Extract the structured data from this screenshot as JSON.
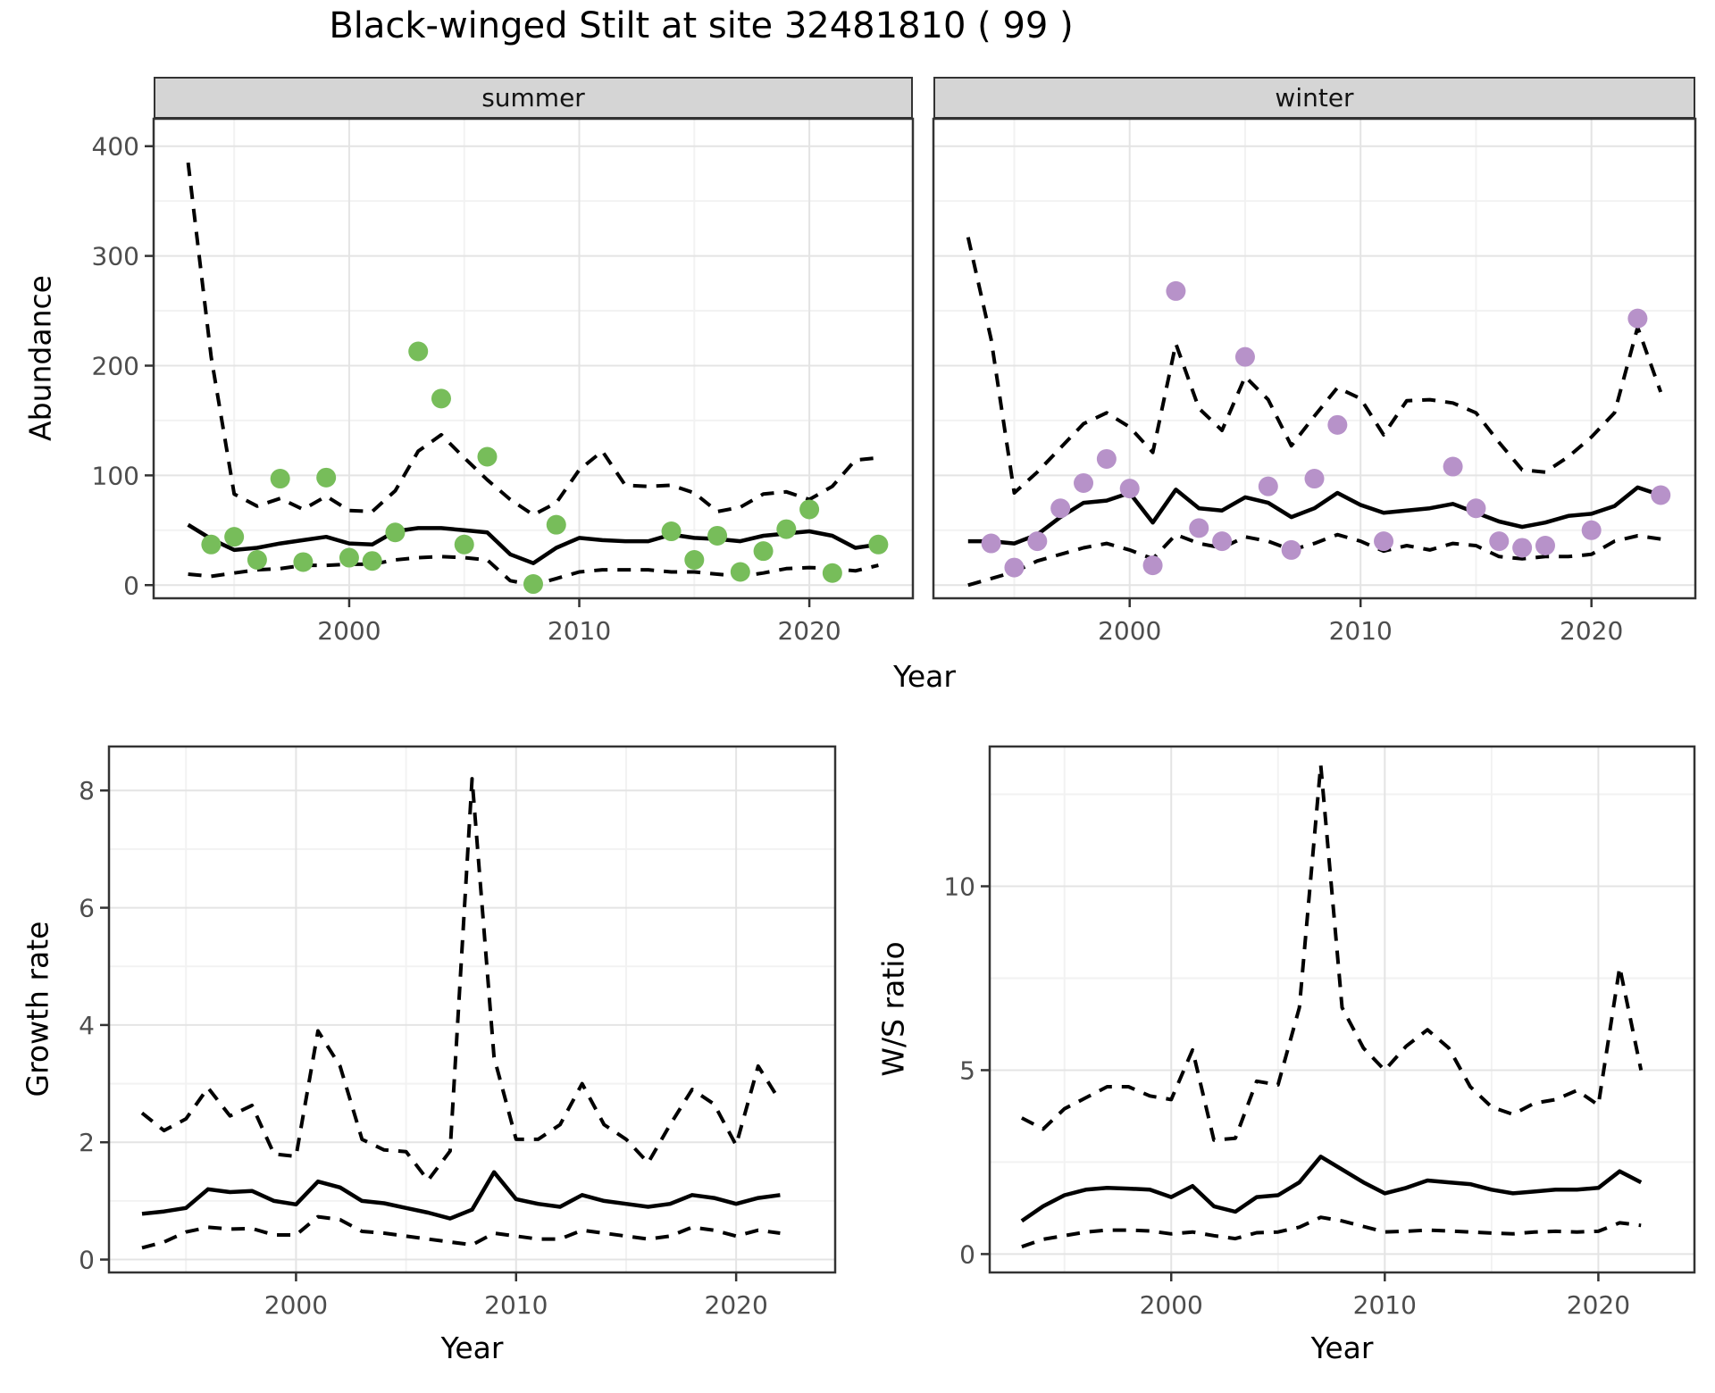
{
  "title": "Black-winged Stilt at site 32481810 ( 99 )",
  "top_row": {
    "ylabel": "Abundance",
    "xlabel": "Year",
    "facets": [
      "summer",
      "winter"
    ]
  },
  "bottom_left": {
    "ylabel": "Growth rate",
    "xlabel": "Year"
  },
  "bottom_right": {
    "ylabel": "W/S ratio",
    "xlabel": "Year"
  },
  "colors": {
    "summer_points": "#77bd5a",
    "winter_points": "#b792c9",
    "line": "#000000",
    "grid_major": "#e4e4e4",
    "grid_minor": "#f2f2f2",
    "strip_bg": "#d5d5d5",
    "panel_border": "#333333",
    "tick_text": "#4d4d4d"
  },
  "chart_data": [
    {
      "id": "abundance_summer",
      "type": "line",
      "facet": "summer",
      "xlabel": "Year",
      "ylabel": "Abundance",
      "xlim": [
        1991.5,
        2024.5
      ],
      "ylim": [
        -12,
        425
      ],
      "x_ticks": [
        2000,
        2010,
        2020
      ],
      "x_minor": [
        1995,
        2005,
        2015
      ],
      "y_ticks": [
        0,
        100,
        200,
        300,
        400
      ],
      "y_minor": [
        50,
        150,
        250,
        350
      ],
      "show_y_tick_labels": true,
      "line_years": [
        1993,
        1994,
        1995,
        1996,
        1997,
        1998,
        1999,
        2000,
        2001,
        2002,
        2003,
        2004,
        2005,
        2006,
        2007,
        2008,
        2009,
        2010,
        2011,
        2012,
        2013,
        2014,
        2015,
        2016,
        2017,
        2018,
        2019,
        2020,
        2021,
        2022,
        2023
      ],
      "series": [
        {
          "name": "upper_95ci",
          "style": "dashed",
          "values": [
            385,
            208,
            83,
            72,
            79,
            69,
            81,
            68,
            67,
            86,
            122,
            137,
            116,
            96,
            78,
            64,
            75,
            105,
            122,
            91,
            90,
            91,
            84,
            67,
            71,
            83,
            85,
            78,
            90,
            114,
            116
          ]
        },
        {
          "name": "mean",
          "style": "solid",
          "values": [
            55,
            42,
            32,
            34,
            38,
            41,
            44,
            38,
            37,
            49,
            52,
            52,
            50,
            48,
            28,
            20,
            34,
            43,
            41,
            40,
            40,
            46,
            43,
            42,
            40,
            45,
            47,
            49,
            45,
            34,
            37
          ]
        },
        {
          "name": "lower_95ci",
          "style": "dashed",
          "values": [
            10,
            8,
            11,
            14,
            15,
            18,
            18,
            19,
            19,
            23,
            25,
            26,
            25,
            23,
            4,
            0,
            6,
            12,
            14,
            14,
            14,
            12,
            12,
            10,
            8,
            11,
            15,
            16,
            15,
            13,
            18
          ]
        }
      ],
      "points": {
        "name": "observed_summer_counts",
        "color_key": "summer_points",
        "data": [
          [
            1994,
            37
          ],
          [
            1995,
            44
          ],
          [
            1996,
            23
          ],
          [
            1997,
            97
          ],
          [
            1998,
            21
          ],
          [
            1999,
            98
          ],
          [
            2000,
            25
          ],
          [
            2001,
            22
          ],
          [
            2002,
            48
          ],
          [
            2003,
            213
          ],
          [
            2004,
            170
          ],
          [
            2005,
            37
          ],
          [
            2006,
            117
          ],
          [
            2008,
            1
          ],
          [
            2009,
            55
          ],
          [
            2014,
            49
          ],
          [
            2015,
            23
          ],
          [
            2016,
            45
          ],
          [
            2017,
            12
          ],
          [
            2018,
            31
          ],
          [
            2019,
            51
          ],
          [
            2020,
            69
          ],
          [
            2021,
            11
          ],
          [
            2023,
            37
          ]
        ]
      }
    },
    {
      "id": "abundance_winter",
      "type": "line",
      "facet": "winter",
      "xlabel": "Year",
      "ylabel": "Abundance",
      "xlim": [
        1991.5,
        2024.5
      ],
      "ylim": [
        -12,
        425
      ],
      "x_ticks": [
        2000,
        2010,
        2020
      ],
      "x_minor": [
        1995,
        2005,
        2015
      ],
      "y_ticks": [
        0,
        100,
        200,
        300,
        400
      ],
      "y_minor": [
        50,
        150,
        250,
        350
      ],
      "show_y_tick_labels": false,
      "line_years": [
        1993,
        1994,
        1995,
        1996,
        1997,
        1998,
        1999,
        2000,
        2001,
        2002,
        2003,
        2004,
        2005,
        2006,
        2007,
        2008,
        2009,
        2010,
        2011,
        2012,
        2013,
        2014,
        2015,
        2016,
        2017,
        2018,
        2019,
        2020,
        2021,
        2022,
        2023
      ],
      "series": [
        {
          "name": "upper_95ci",
          "style": "dashed",
          "values": [
            317,
            224,
            84,
            103,
            125,
            147,
            157,
            144,
            121,
            220,
            161,
            141,
            190,
            169,
            127,
            154,
            180,
            170,
            137,
            168,
            169,
            166,
            157,
            130,
            105,
            103,
            117,
            135,
            157,
            235,
            176
          ]
        },
        {
          "name": "mean",
          "style": "solid",
          "values": [
            40,
            40,
            38,
            46,
            62,
            75,
            77,
            84,
            57,
            87,
            70,
            68,
            80,
            75,
            62,
            70,
            84,
            73,
            66,
            68,
            70,
            74,
            66,
            58,
            53,
            57,
            63,
            65,
            72,
            89,
            82
          ]
        },
        {
          "name": "lower_95ci",
          "style": "dashed",
          "values": [
            0,
            6,
            12,
            22,
            28,
            34,
            38,
            32,
            24,
            46,
            38,
            34,
            44,
            40,
            32,
            38,
            46,
            40,
            31,
            36,
            32,
            38,
            36,
            26,
            24,
            26,
            26,
            28,
            40,
            45,
            42
          ]
        }
      ],
      "points": {
        "name": "observed_winter_counts",
        "color_key": "winter_points",
        "data": [
          [
            1994,
            38
          ],
          [
            1995,
            16
          ],
          [
            1996,
            40
          ],
          [
            1997,
            70
          ],
          [
            1998,
            93
          ],
          [
            1999,
            115
          ],
          [
            2000,
            88
          ],
          [
            2001,
            18
          ],
          [
            2002,
            268
          ],
          [
            2003,
            52
          ],
          [
            2004,
            40
          ],
          [
            2005,
            208
          ],
          [
            2006,
            90
          ],
          [
            2007,
            32
          ],
          [
            2008,
            97
          ],
          [
            2009,
            146
          ],
          [
            2011,
            40
          ],
          [
            2014,
            108
          ],
          [
            2015,
            70
          ],
          [
            2016,
            40
          ],
          [
            2017,
            34
          ],
          [
            2018,
            36
          ],
          [
            2020,
            50
          ],
          [
            2022,
            243
          ],
          [
            2023,
            82
          ]
        ]
      }
    },
    {
      "id": "growth_rate",
      "type": "line",
      "xlabel": "Year",
      "ylabel": "Growth rate",
      "xlim": [
        1991.5,
        2024.5
      ],
      "ylim": [
        -0.22,
        8.75
      ],
      "x_ticks": [
        2000,
        2010,
        2020
      ],
      "x_minor": [
        1995,
        2005,
        2015
      ],
      "y_ticks": [
        0,
        2,
        4,
        6,
        8
      ],
      "y_minor": [
        1,
        3,
        5,
        7
      ],
      "show_y_tick_labels": true,
      "line_years": [
        1993,
        1994,
        1995,
        1996,
        1997,
        1998,
        1999,
        2000,
        2001,
        2002,
        2003,
        2004,
        2005,
        2006,
        2007,
        2008,
        2009,
        2010,
        2011,
        2012,
        2013,
        2014,
        2015,
        2016,
        2017,
        2018,
        2019,
        2020,
        2021,
        2022
      ],
      "series": [
        {
          "name": "upper_95ci",
          "style": "dashed",
          "values": [
            2.5,
            2.2,
            2.4,
            2.93,
            2.45,
            2.63,
            1.8,
            1.76,
            3.9,
            3.3,
            2.05,
            1.87,
            1.84,
            1.35,
            1.85,
            8.2,
            3.45,
            2.05,
            2.05,
            2.3,
            3.0,
            2.3,
            2.05,
            1.65,
            2.3,
            2.9,
            2.65,
            1.95,
            3.3,
            2.7
          ]
        },
        {
          "name": "mean",
          "style": "solid",
          "values": [
            0.78,
            0.82,
            0.88,
            1.2,
            1.15,
            1.17,
            1.0,
            0.94,
            1.33,
            1.23,
            1.0,
            0.96,
            0.88,
            0.8,
            0.7,
            0.85,
            1.49,
            1.03,
            0.95,
            0.9,
            1.1,
            1.0,
            0.95,
            0.9,
            0.95,
            1.1,
            1.05,
            0.95,
            1.05,
            1.1
          ]
        },
        {
          "name": "lower_95ci",
          "style": "dashed",
          "values": [
            0.2,
            0.3,
            0.47,
            0.55,
            0.52,
            0.53,
            0.42,
            0.42,
            0.73,
            0.68,
            0.48,
            0.45,
            0.4,
            0.35,
            0.3,
            0.25,
            0.45,
            0.4,
            0.35,
            0.35,
            0.5,
            0.45,
            0.4,
            0.35,
            0.4,
            0.55,
            0.5,
            0.4,
            0.5,
            0.45
          ]
        }
      ],
      "points": null
    },
    {
      "id": "ws_ratio",
      "type": "line",
      "xlabel": "Year",
      "ylabel": "W/S ratio",
      "xlim": [
        1991.5,
        2024.5
      ],
      "ylim": [
        -0.5,
        13.8
      ],
      "x_ticks": [
        2000,
        2010,
        2020
      ],
      "x_minor": [
        1995,
        2005,
        2015
      ],
      "y_ticks": [
        0,
        5,
        10
      ],
      "y_minor": [
        2.5,
        7.5,
        12.5
      ],
      "show_y_tick_labels": true,
      "line_years": [
        1993,
        1994,
        1995,
        1996,
        1997,
        1998,
        1999,
        2000,
        2001,
        2002,
        2003,
        2004,
        2005,
        2006,
        2007,
        2008,
        2009,
        2010,
        2011,
        2012,
        2013,
        2014,
        2015,
        2016,
        2017,
        2018,
        2019,
        2020,
        2021,
        2022
      ],
      "series": [
        {
          "name": "upper_95ci",
          "style": "dashed",
          "values": [
            3.7,
            3.4,
            3.95,
            4.25,
            4.55,
            4.55,
            4.3,
            4.2,
            5.55,
            3.1,
            3.15,
            4.7,
            4.6,
            6.7,
            13.3,
            6.7,
            5.6,
            5.0,
            5.65,
            6.1,
            5.6,
            4.55,
            4.0,
            3.8,
            4.1,
            4.2,
            4.45,
            4.05,
            7.8,
            5.0
          ]
        },
        {
          "name": "mean",
          "style": "solid",
          "values": [
            0.9,
            1.3,
            1.6,
            1.75,
            1.8,
            1.78,
            1.75,
            1.55,
            1.85,
            1.3,
            1.15,
            1.55,
            1.6,
            1.95,
            2.65,
            2.3,
            1.95,
            1.65,
            1.8,
            2.0,
            1.95,
            1.9,
            1.75,
            1.65,
            1.7,
            1.75,
            1.75,
            1.8,
            2.25,
            1.95
          ]
        },
        {
          "name": "lower_95ci",
          "style": "dashed",
          "values": [
            0.2,
            0.4,
            0.5,
            0.6,
            0.65,
            0.65,
            0.63,
            0.55,
            0.6,
            0.5,
            0.42,
            0.58,
            0.6,
            0.73,
            1.0,
            0.9,
            0.75,
            0.6,
            0.62,
            0.65,
            0.63,
            0.6,
            0.57,
            0.55,
            0.6,
            0.62,
            0.6,
            0.62,
            0.85,
            0.78
          ]
        }
      ],
      "points": null
    }
  ]
}
